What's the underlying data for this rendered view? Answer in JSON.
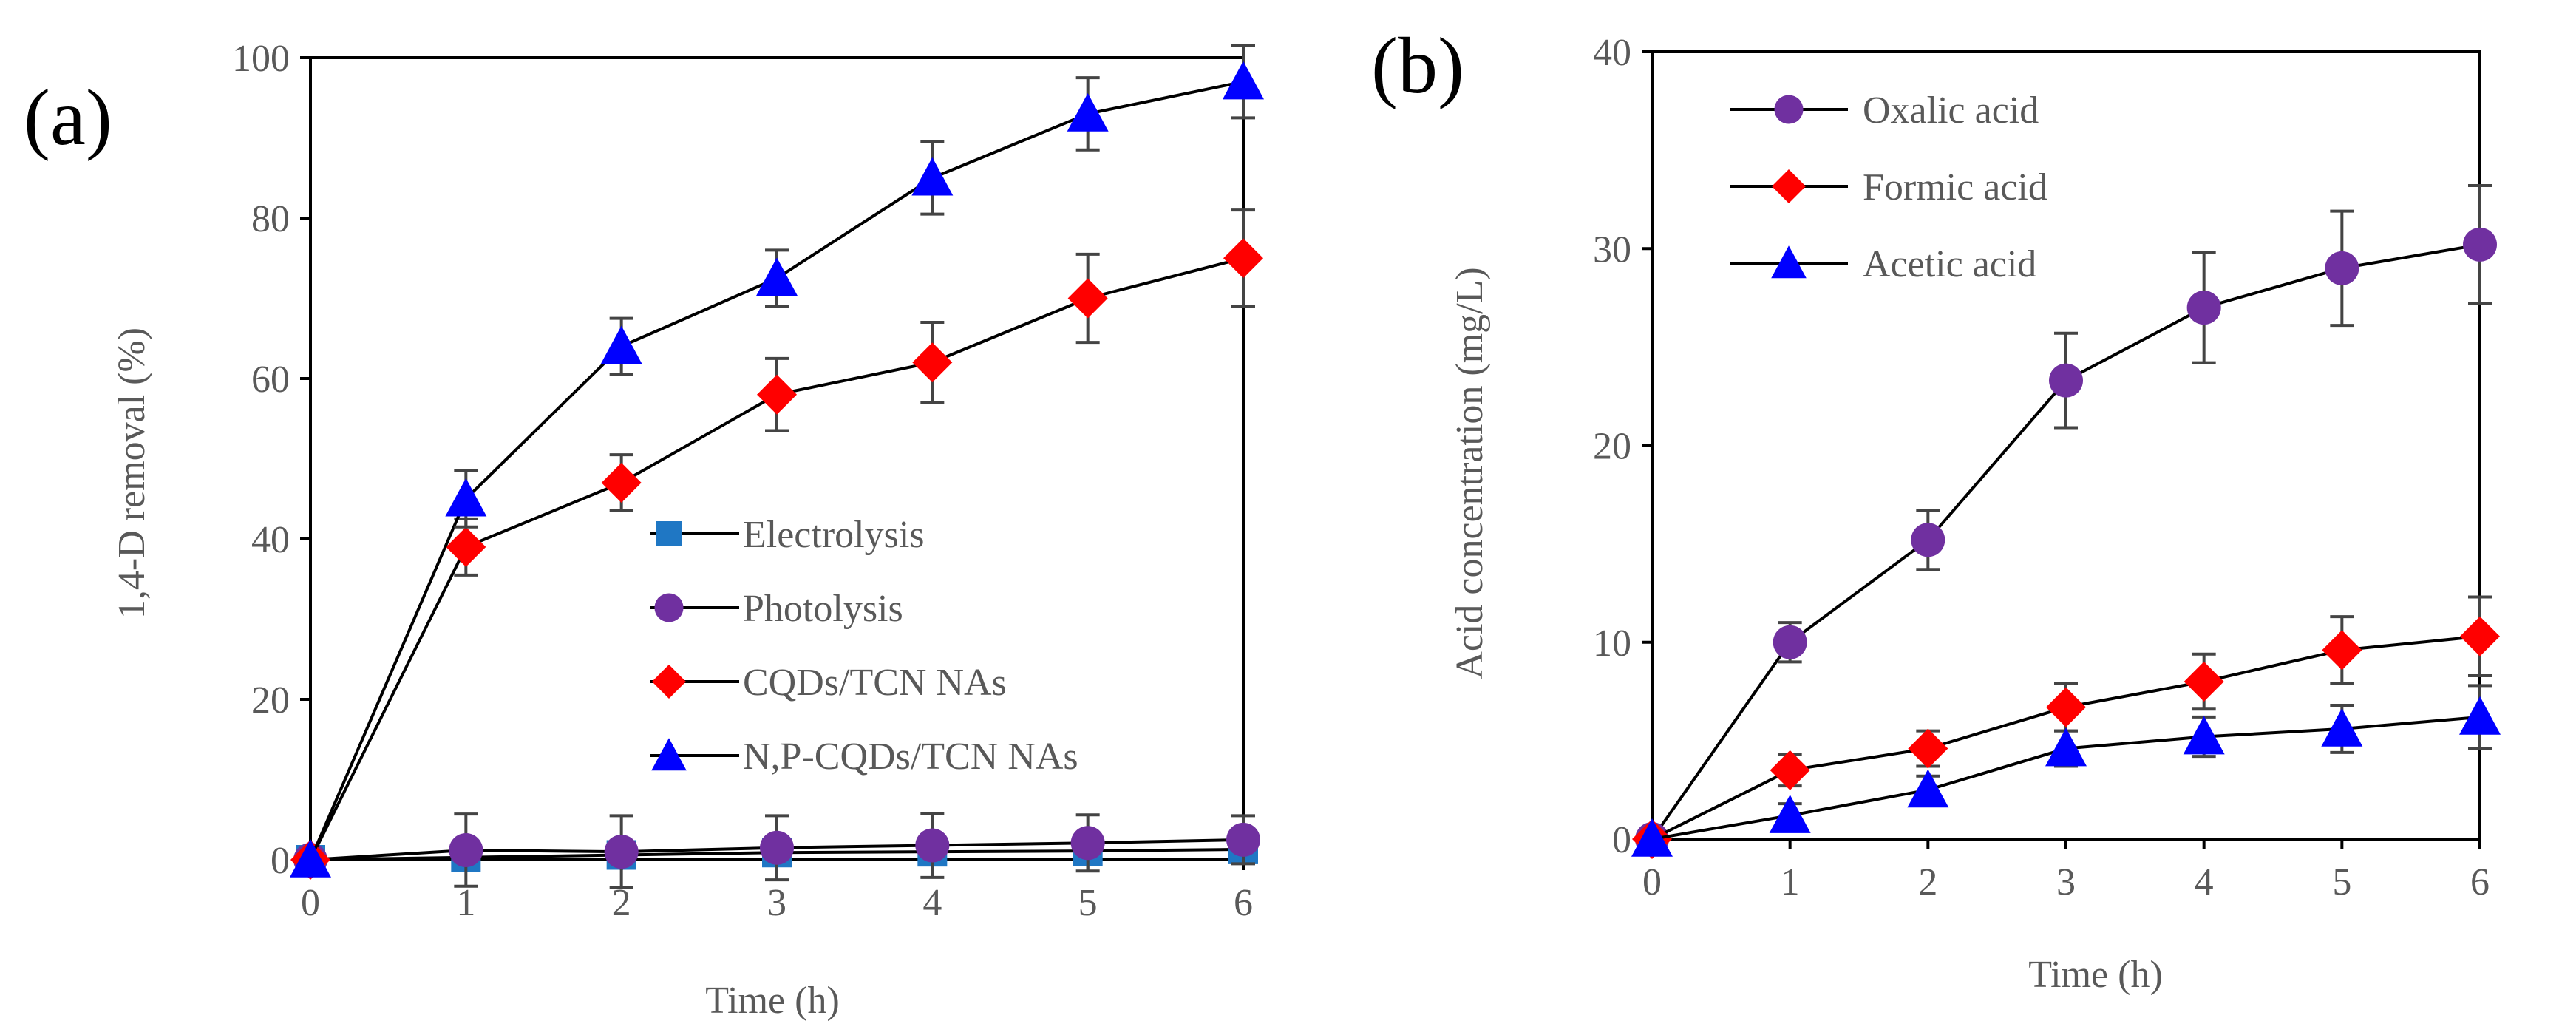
{
  "chart_data": [
    {
      "type": "line",
      "panel_label": "(a)",
      "title": "",
      "xlabel": "Time (h)",
      "ylabel": "1,4-D removal (%)",
      "x": [
        0,
        1,
        2,
        3,
        4,
        5,
        6
      ],
      "xlim": [
        0,
        6
      ],
      "ylim": [
        0,
        100
      ],
      "x_ticks": [
        "0",
        "1",
        "2",
        "3",
        "4",
        "5",
        "6"
      ],
      "y_ticks": [
        "0",
        "20",
        "40",
        "60",
        "80",
        "100"
      ],
      "grid": false,
      "legend_position": "center-right",
      "series": [
        {
          "name": "Electrolysis",
          "marker": "square",
          "color": "#1f77c4",
          "values": [
            0,
            0.3,
            0.6,
            0.9,
            1.0,
            1.1,
            1.3
          ],
          "errors": [
            0,
            0,
            0,
            0,
            0,
            0,
            0
          ]
        },
        {
          "name": "Photolysis",
          "marker": "circle",
          "color": "#7030a0",
          "values": [
            0,
            1.2,
            1.0,
            1.5,
            1.8,
            2.1,
            2.5
          ],
          "errors": [
            0,
            4.5,
            4.5,
            4.0,
            4.0,
            3.5,
            3.0
          ]
        },
        {
          "name": "CQDs/TCN NAs",
          "marker": "diamond",
          "color": "#ff0000",
          "values": [
            0,
            39,
            47,
            58,
            62,
            70,
            75
          ],
          "errors": [
            0,
            3.5,
            3.5,
            4.5,
            5.0,
            5.5,
            6.0
          ]
        },
        {
          "name": "N,P-CQDs/TCN NAs",
          "marker": "triangle",
          "color": "#0000ff",
          "values": [
            0,
            45,
            64,
            72.5,
            85,
            93,
            97
          ],
          "errors": [
            0,
            3.5,
            3.5,
            3.5,
            4.5,
            4.5,
            4.5
          ]
        }
      ]
    },
    {
      "type": "line",
      "panel_label": "(b)",
      "title": "",
      "xlabel": "Time (h)",
      "ylabel": "Acid concentration (mg/L)",
      "x": [
        0,
        1,
        2,
        3,
        4,
        5,
        6
      ],
      "xlim": [
        0,
        6
      ],
      "ylim": [
        0,
        40
      ],
      "x_ticks": [
        "0",
        "1",
        "2",
        "3",
        "4",
        "5",
        "6"
      ],
      "y_ticks": [
        "0",
        "10",
        "20",
        "30",
        "40"
      ],
      "grid": false,
      "legend_position": "top-left",
      "series": [
        {
          "name": "Oxalic acid",
          "marker": "circle",
          "color": "#7030a0",
          "values": [
            0,
            10,
            15.2,
            23.3,
            27,
            29,
            30.2
          ],
          "errors": [
            0,
            1.0,
            1.5,
            2.4,
            2.8,
            2.9,
            3.0
          ]
        },
        {
          "name": "Formic acid",
          "marker": "diamond",
          "color": "#ff0000",
          "values": [
            0,
            3.5,
            4.6,
            6.7,
            8.0,
            9.6,
            10.3
          ],
          "errors": [
            0,
            0.8,
            0.9,
            1.2,
            1.4,
            1.7,
            2.0
          ]
        },
        {
          "name": "Acetic acid",
          "marker": "triangle",
          "color": "#0000ff",
          "values": [
            0,
            1.2,
            2.5,
            4.6,
            5.2,
            5.6,
            6.2
          ],
          "errors": [
            0,
            0.6,
            0.7,
            0.9,
            1.0,
            1.2,
            1.6
          ]
        }
      ]
    }
  ]
}
